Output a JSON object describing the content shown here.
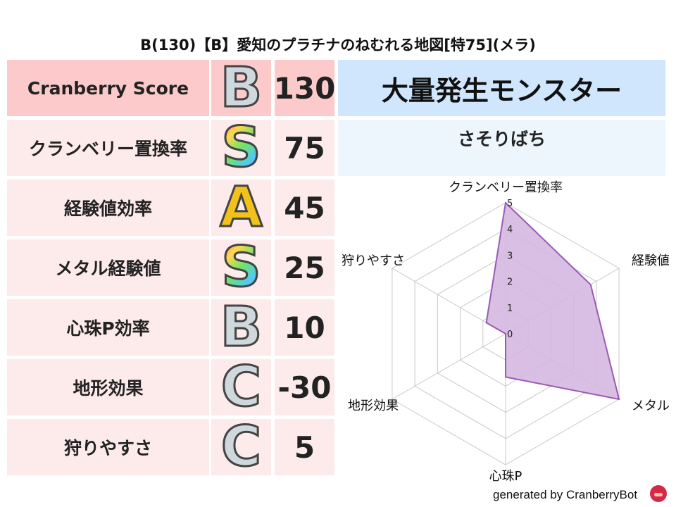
{
  "title": "B(130)【B】愛知のプラチナのねむれる地図[特75](メラ)",
  "rows": [
    {
      "label": "Cranberry Score",
      "grade": "B",
      "value": "130"
    },
    {
      "label": "クランベリー置換率",
      "grade": "S",
      "value": "75"
    },
    {
      "label": "経験値効率",
      "grade": "A",
      "value": "45"
    },
    {
      "label": "メタル経験値",
      "grade": "S",
      "value": "25"
    },
    {
      "label": "心珠P効率",
      "grade": "B",
      "value": "10"
    },
    {
      "label": "地形効果",
      "grade": "C",
      "value": "-30"
    },
    {
      "label": "狩りやすさ",
      "grade": "C",
      "value": "5"
    }
  ],
  "monster_header": "大量発生モンスター",
  "monster_name": "さそりばち",
  "chart_data": {
    "type": "radar",
    "axes": [
      "クランベリー置換率",
      "経験値",
      "メタル",
      "心珠P",
      "地形効果",
      "狩りやすさ"
    ],
    "values": [
      5,
      3.75,
      5,
      1.65,
      0,
      0.85
    ],
    "range": [
      0,
      5
    ],
    "ticks": [
      "0",
      "1",
      "2",
      "3",
      "4",
      "5"
    ],
    "fill_color": "#d4b8e0",
    "line_color": "#9b59b6",
    "grid": true
  },
  "footer": "generated by CranberryBot"
}
